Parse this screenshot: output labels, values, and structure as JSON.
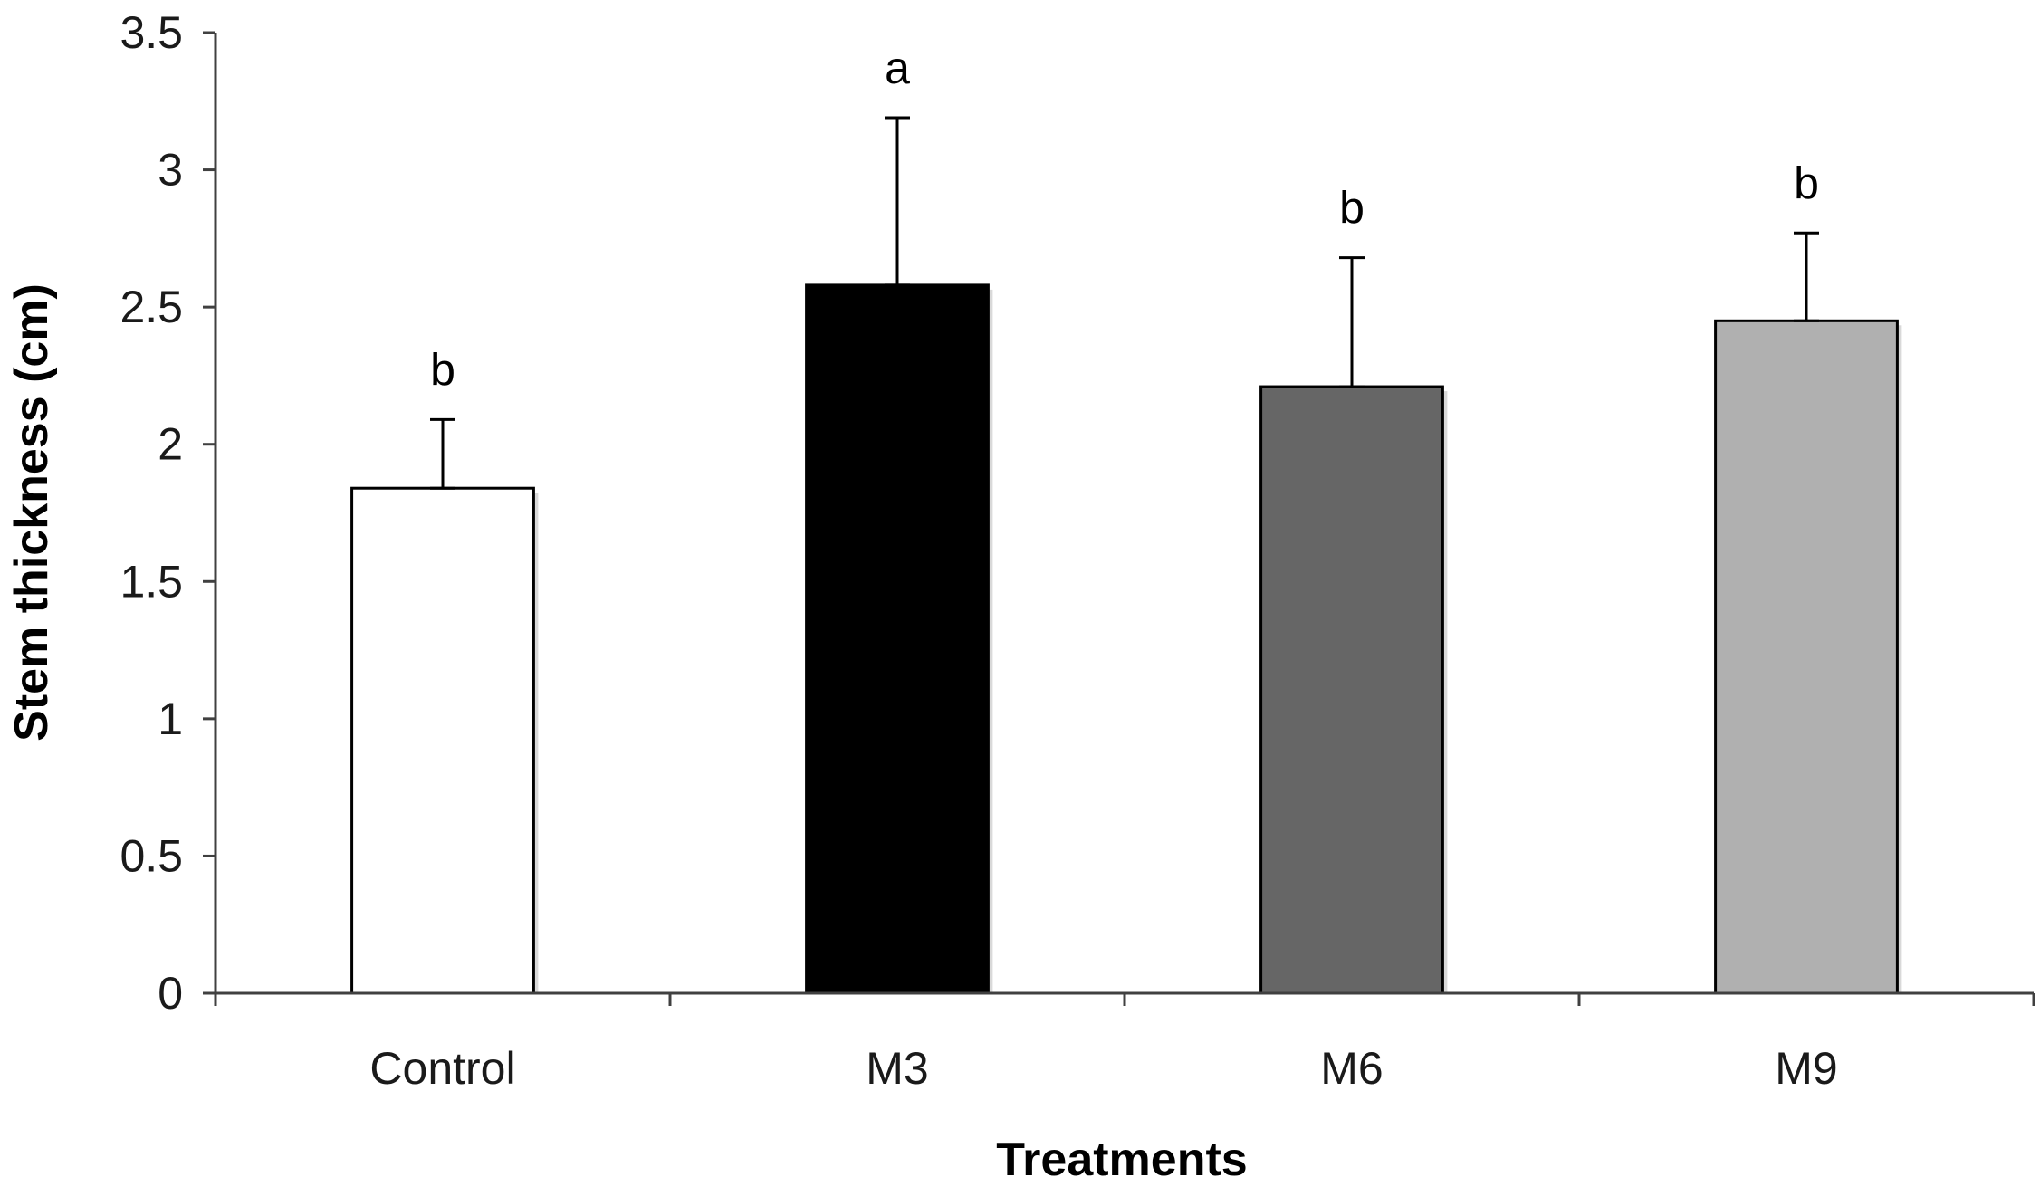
{
  "chart_data": {
    "type": "bar",
    "title": "",
    "xlabel": "Treatments",
    "ylabel": "Stem thickness (cm)",
    "ylim": [
      0,
      3.5
    ],
    "yticks": [
      "0",
      "0.5",
      "1",
      "1.5",
      "2",
      "2.5",
      "3",
      "3.5"
    ],
    "categories": [
      "Control",
      "M3",
      "M6",
      "M9"
    ],
    "values": [
      1.84,
      2.58,
      2.21,
      2.45
    ],
    "errors": [
      0.25,
      0.61,
      0.47,
      0.32
    ],
    "significance": [
      "b",
      "a",
      "b",
      "b"
    ],
    "bar_colors": [
      "#ffffff",
      "#000000",
      "#666666",
      "#b0b0b0"
    ],
    "grid": false,
    "legend": "none"
  }
}
